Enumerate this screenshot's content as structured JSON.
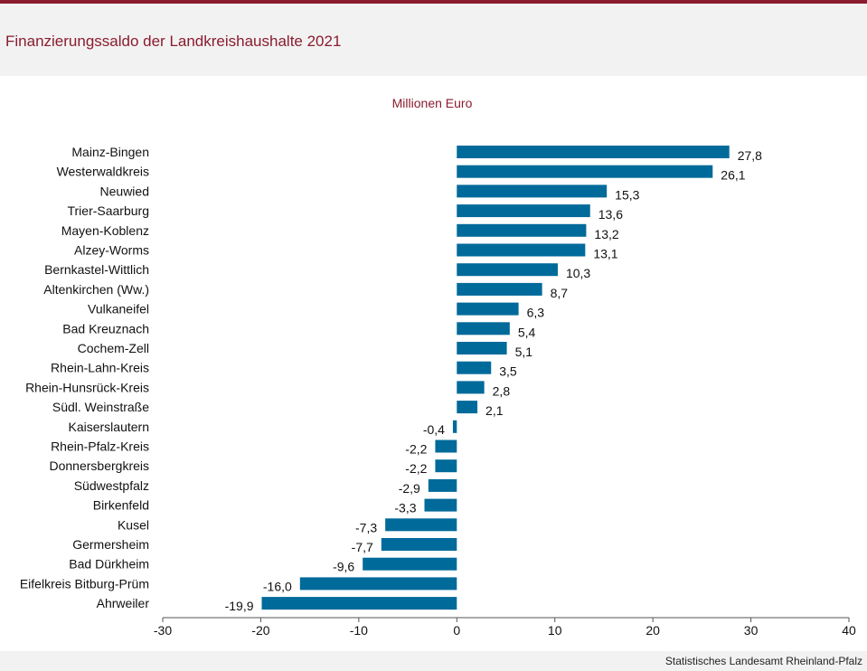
{
  "header": {
    "title": "Finanzierungssaldo der Landkreishaushalte 2021",
    "source": "Statistisches Landesamt  Rheinland-Pfalz"
  },
  "colors": {
    "accent": "#8b1c2f",
    "bar": "#006a9a"
  },
  "chart_data": {
    "type": "bar",
    "orientation": "horizontal",
    "title": "Finanzierungssaldo der Landkreishaushalte 2021",
    "subtitle": "Millionen  Euro",
    "xlabel": "",
    "ylabel": "",
    "xlim": [
      -30,
      40
    ],
    "xticks": [
      -30,
      -20,
      -10,
      0,
      10,
      20,
      30,
      40
    ],
    "grid": false,
    "categories": [
      "Mainz-Bingen",
      "Westerwaldkreis",
      "Neuwied",
      "Trier-Saarburg",
      "Mayen-Koblenz",
      "Alzey-Worms",
      "Bernkastel-Wittlich",
      "Altenkirchen (Ww.)",
      "Vulkaneifel",
      "Bad Kreuznach",
      "Cochem-Zell",
      "Rhein-Lahn-Kreis",
      "Rhein-Hunsrück-Kreis",
      "Südl. Weinstraße",
      "Kaiserslautern",
      "Rhein-Pfalz-Kreis",
      "Donnersbergkreis",
      "Südwestpfalz",
      "Birkenfeld",
      "Kusel",
      "Germersheim",
      "Bad Dürkheim",
      "Eifelkreis Bitburg-Prüm",
      "Ahrweiler"
    ],
    "values": [
      27.8,
      26.1,
      15.3,
      13.6,
      13.2,
      13.1,
      10.3,
      8.7,
      6.3,
      5.4,
      5.1,
      3.5,
      2.8,
      2.1,
      -0.4,
      -2.2,
      -2.2,
      -2.9,
      -3.3,
      -7.3,
      -7.7,
      -9.6,
      -16.0,
      -19.9
    ],
    "value_labels": [
      "27,8",
      "26,1",
      "15,3",
      "13,6",
      "13,2",
      "13,1",
      "10,3",
      "8,7",
      "6,3",
      "5,4",
      "5,1",
      "3,5",
      "2,8",
      "2,1",
      "-0,4",
      "-2,2",
      "-2,2",
      "-2,9",
      "-3,3",
      "-7,3",
      "-7,7",
      "-9,6",
      "-16,0",
      "-19,9"
    ]
  }
}
